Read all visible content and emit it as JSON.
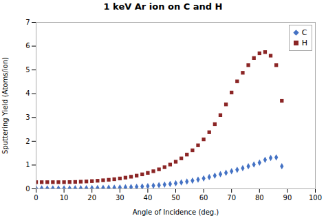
{
  "chart_data": {
    "type": "scatter",
    "title": "1 keV Ar ion on C and H",
    "xlabel": "Angle of Incidence (deg.)",
    "ylabel": "Sputtering Yield (Atoms/ion)",
    "xlim": [
      0,
      100
    ],
    "ylim": [
      0,
      7
    ],
    "xticks": [
      0,
      10,
      20,
      30,
      40,
      50,
      60,
      70,
      80,
      90,
      100
    ],
    "yticks": [
      0,
      1,
      2,
      3,
      4,
      5,
      6,
      7
    ],
    "grid": false,
    "legend": "upper right",
    "series": [
      {
        "name": "C",
        "color": "#4472C4",
        "marker": "diamond",
        "x": [
          0,
          2,
          4,
          6,
          8,
          10,
          12,
          14,
          16,
          18,
          20,
          22,
          24,
          26,
          28,
          30,
          32,
          34,
          36,
          38,
          40,
          42,
          44,
          46,
          48,
          50,
          52,
          54,
          56,
          58,
          60,
          62,
          64,
          66,
          68,
          70,
          72,
          74,
          76,
          78,
          80,
          82,
          84,
          86,
          88
        ],
        "values": [
          0.02,
          0.02,
          0.02,
          0.02,
          0.02,
          0.02,
          0.02,
          0.022,
          0.025,
          0.028,
          0.032,
          0.036,
          0.04,
          0.045,
          0.05,
          0.058,
          0.065,
          0.075,
          0.085,
          0.1,
          0.115,
          0.135,
          0.155,
          0.178,
          0.205,
          0.235,
          0.268,
          0.305,
          0.345,
          0.39,
          0.44,
          0.495,
          0.555,
          0.615,
          0.675,
          0.74,
          0.8,
          0.87,
          0.95,
          1.02,
          1.1,
          1.22,
          1.3,
          1.32,
          0.95
        ]
      },
      {
        "name": "H",
        "color": "#8B2525",
        "marker": "square",
        "x": [
          0,
          2,
          4,
          6,
          8,
          10,
          12,
          14,
          16,
          18,
          20,
          22,
          24,
          26,
          28,
          30,
          32,
          34,
          36,
          38,
          40,
          42,
          44,
          46,
          48,
          50,
          52,
          54,
          56,
          58,
          60,
          62,
          64,
          66,
          68,
          70,
          72,
          74,
          76,
          78,
          80,
          82,
          84,
          86,
          88
        ],
        "values": [
          0.28,
          0.28,
          0.28,
          0.28,
          0.28,
          0.28,
          0.285,
          0.29,
          0.3,
          0.31,
          0.325,
          0.34,
          0.36,
          0.38,
          0.405,
          0.435,
          0.47,
          0.51,
          0.555,
          0.61,
          0.67,
          0.74,
          0.82,
          0.91,
          1.02,
          1.14,
          1.28,
          1.44,
          1.62,
          1.83,
          2.08,
          2.38,
          2.72,
          3.1,
          3.55,
          4.05,
          4.52,
          4.88,
          5.2,
          5.5,
          5.7,
          5.75,
          5.6,
          5.2,
          3.7
        ]
      }
    ]
  }
}
